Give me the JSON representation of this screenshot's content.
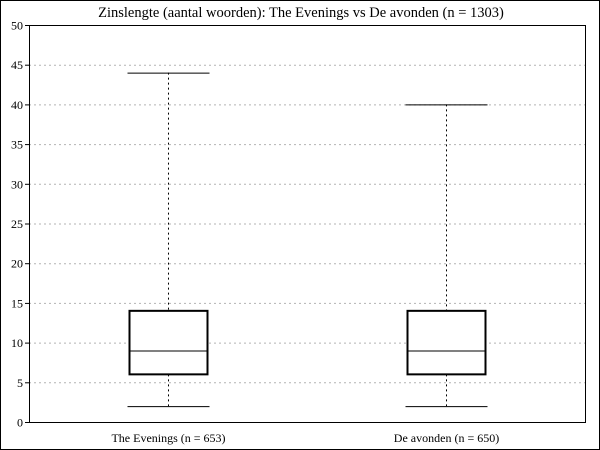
{
  "chart_data": {
    "type": "box",
    "title": "Zinslengte (aantal woorden): The Evenings vs De avonden (n = 1303)",
    "xlabel": "",
    "ylabel": "",
    "ylim": [
      0,
      50
    ],
    "yticks": [
      0,
      5,
      10,
      15,
      20,
      25,
      30,
      35,
      40,
      45,
      50
    ],
    "grid": "horizontal-dotted",
    "legend": "none",
    "categories": [
      "The Evenings (n = 653)",
      "De avonden (n = 650)"
    ],
    "boxes": [
      {
        "category": "The Evenings (n = 653)",
        "whisker_low": 2,
        "q1": 6,
        "median": 9,
        "q3": 14,
        "whisker_high": 44
      },
      {
        "category": "De avonden (n = 650)",
        "whisker_low": 2,
        "q1": 6,
        "median": 9,
        "q3": 14,
        "whisker_high": 40
      }
    ]
  }
}
